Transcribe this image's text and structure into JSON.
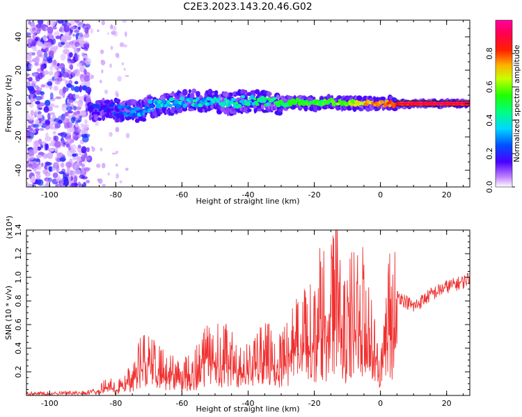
{
  "figure_title": "C2E3.2023.143.20.46.G02",
  "colors": {
    "snr_line": "#f03030",
    "spectrum_points": "#8a2be2",
    "frequency_line": "#2a1a1a"
  },
  "chart_data": [
    {
      "type": "heatmap",
      "xlabel": "Height of straight line (km)",
      "ylabel": "Frequency (Hz)",
      "xlim": [
        -107,
        27
      ],
      "ylim": [
        -50,
        50
      ],
      "x_ticks": [
        -100,
        -80,
        -60,
        -40,
        -20,
        0,
        20
      ],
      "y_ticks": [
        -40,
        -20,
        0,
        20,
        40
      ],
      "x_tick_labels": [
        "-100",
        "-80",
        "-60",
        "-40",
        "-20",
        "0",
        "20"
      ],
      "y_tick_labels": [
        "-40",
        "-20",
        "0",
        "20",
        "40"
      ],
      "colorbar": {
        "label": "Normalized spectral amplitude",
        "range": [
          0,
          1
        ],
        "ticks": [
          0,
          0.2,
          0.4,
          0.6,
          0.8
        ],
        "tick_labels": [
          "0.0",
          "0.2",
          "0.4",
          "0.6",
          "0.8"
        ],
        "colormap": "rainbow (purple-blue-cyan-green-yellow-red-magenta)"
      },
      "ridge": {
        "x": [
          -88,
          -80,
          -72,
          -70,
          -65,
          -60,
          -55,
          -50,
          -45,
          -40,
          -35,
          -30,
          -25,
          -20,
          -15,
          -10,
          -5,
          0,
          5,
          10,
          15,
          20,
          27
        ],
        "frequency": [
          -3,
          -4,
          -5,
          -2,
          0,
          1,
          2,
          1,
          0,
          2,
          1,
          0,
          1,
          0,
          1,
          0,
          0,
          0,
          0,
          0,
          0,
          0,
          0
        ],
        "amplitude": [
          0.15,
          0.2,
          0.3,
          0.3,
          0.35,
          0.35,
          0.35,
          0.35,
          0.4,
          0.4,
          0.45,
          0.5,
          0.55,
          0.5,
          0.55,
          0.6,
          0.7,
          0.75,
          0.8,
          0.85,
          0.85,
          0.85,
          0.85
        ]
      },
      "noise_region": [
        -107,
        -88
      ]
    },
    {
      "type": "line",
      "xlabel": "Height of straight line (km)",
      "ylabel": "SNR (10 * v/v)",
      "y_multiplier_label": "(x10⁴)",
      "xlim": [
        -107,
        27
      ],
      "ylim": [
        0,
        1.4
      ],
      "x_ticks": [
        -100,
        -80,
        -60,
        -40,
        -20,
        0,
        20
      ],
      "y_ticks": [
        0.2,
        0.4,
        0.6,
        0.8,
        1.0,
        1.2,
        1.4
      ],
      "x_tick_labels": [
        "-100",
        "-80",
        "-60",
        "-40",
        "-20",
        "0",
        "20"
      ],
      "y_tick_labels": [
        "0.2",
        "0.4",
        "0.6",
        "0.8",
        "1.0",
        "1.2",
        "1.4"
      ],
      "series": [
        {
          "x": [
            -107,
            -100,
            -90,
            -85,
            -82,
            -80,
            -75,
            -70,
            -68,
            -65,
            -60,
            -55,
            -52,
            -50,
            -48,
            -45,
            -42,
            -40,
            -38,
            -35,
            -30,
            -25,
            -22,
            -20,
            -18,
            -16,
            -14,
            -13,
            -12,
            -10,
            -8,
            -6,
            -4,
            -2,
            0,
            2,
            5,
            10,
            15,
            20,
            25,
            27
          ],
          "values": [
            0.02,
            0.02,
            0.03,
            0.05,
            0.12,
            0.06,
            0.2,
            0.45,
            0.3,
            0.25,
            0.2,
            0.3,
            0.55,
            0.4,
            0.45,
            0.35,
            0.3,
            0.3,
            0.35,
            0.4,
            0.45,
            0.55,
            0.75,
            0.6,
            0.9,
            0.75,
            0.95,
            1.4,
            0.6,
            0.65,
            0.9,
            0.8,
            0.85,
            0.45,
            0.2,
            0.75,
            0.85,
            0.75,
            0.85,
            0.92,
            0.96,
            1.0
          ]
        }
      ]
    }
  ]
}
